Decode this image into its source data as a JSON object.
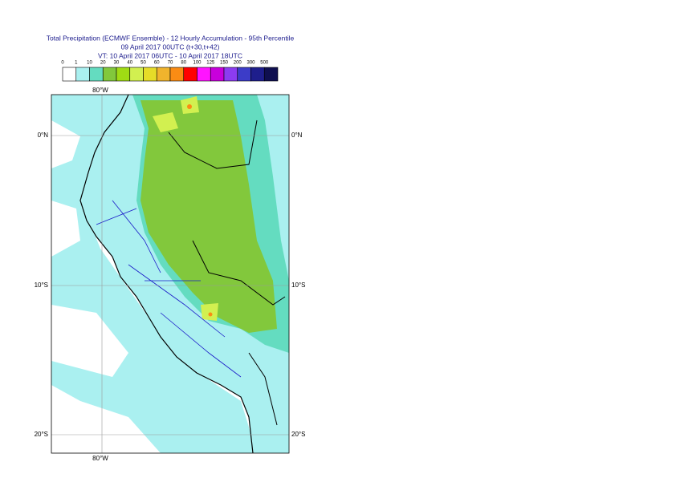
{
  "header": {
    "title_lines": [
      "Total Precipitation (ECMWF Ensemble) - 12 Hourly Accumulation - 95th Percentile",
      "09 April 2017 00UTC (t+30,t+42)",
      "VT: 10 April 2017 06UTC - 10 April 2017 18UTC"
    ]
  },
  "legend": {
    "labels": [
      "0",
      "1",
      "10",
      "20",
      "30",
      "40",
      "50",
      "60",
      "70",
      "80",
      "100",
      "125",
      "150",
      "200",
      "300",
      "500"
    ],
    "colors": [
      "#ffffff",
      "#aaf0f0",
      "#64dcc0",
      "#82c83c",
      "#a0dc14",
      "#d2f050",
      "#e6dc28",
      "#f0b42d",
      "#fa8c14",
      "#ff0000",
      "#ff14ff",
      "#c800dc",
      "#8c3cf0",
      "#3c3cc8",
      "#1e1e8c",
      "#0f0f50"
    ]
  },
  "map": {
    "lon_label": "80°W",
    "lat_labels": [
      "0°N",
      "10°S",
      "20°S"
    ]
  }
}
